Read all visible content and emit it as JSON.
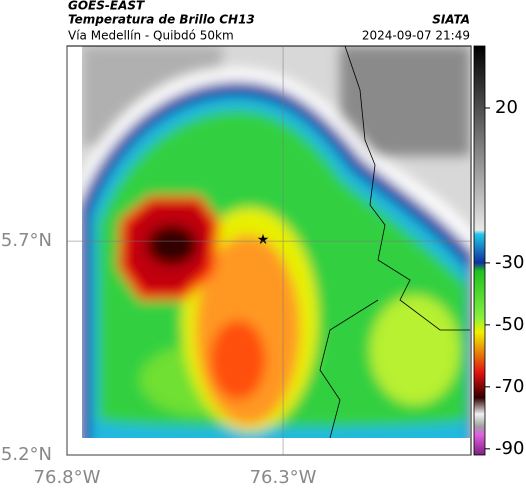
{
  "header": {
    "satellite": "GOES-EAST",
    "product": "Temperatura de Brillo CH13",
    "source": "SIATA",
    "region": "Vía Medellín - Quibdó 50km",
    "timestamp": "2024-09-07 21:49"
  },
  "map": {
    "lonlim": [
      -76.8,
      -75.865
    ],
    "latlim": [
      5.2,
      6.156
    ],
    "lon_ticks": [
      {
        "value": -76.8,
        "label": "76.8°W"
      },
      {
        "value": -76.3,
        "label": "76.3°W"
      }
    ],
    "lat_ticks": [
      {
        "value": 5.7,
        "label": "5.7°N"
      },
      {
        "value": 5.2,
        "label": "5.2°N"
      }
    ],
    "colorbar": {
      "lim": [
        -92,
        40
      ],
      "ticks": [
        20,
        -30,
        -50,
        -70,
        -90
      ]
    }
  }
}
